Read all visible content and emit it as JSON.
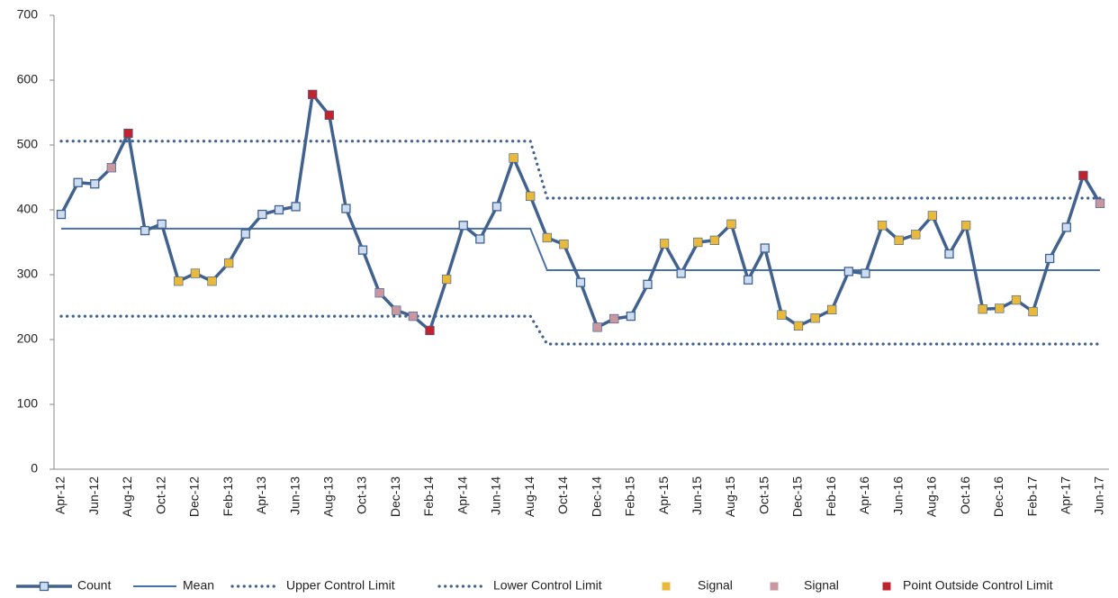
{
  "chart_data": {
    "type": "line",
    "categories": [
      "Apr-12",
      null,
      "Jun-12",
      null,
      "Aug-12",
      null,
      "Oct-12",
      null,
      "Dec-12",
      null,
      "Feb-13",
      null,
      "Apr-13",
      null,
      "Jun-13",
      null,
      "Aug-13",
      null,
      "Oct-13",
      null,
      "Dec-13",
      null,
      "Feb-14",
      null,
      "Apr-14",
      null,
      "Jun-14",
      null,
      "Aug-14",
      null,
      "Oct-14",
      null,
      "Dec-14",
      null,
      "Feb-15",
      null,
      "Apr-15",
      null,
      "Jun-15",
      null,
      "Aug-15",
      null,
      "Oct-15",
      null,
      "Dec-15",
      null,
      "Feb-16",
      null,
      "Apr-16",
      null,
      "Jun-16",
      null,
      "Aug-16",
      null,
      "Oct-16",
      null,
      "Dec-16",
      null,
      "Feb-17",
      null,
      "Apr-17",
      null,
      "Jun-17"
    ],
    "ylim": [
      0,
      700
    ],
    "yticks": [
      0,
      100,
      200,
      300,
      400,
      500,
      600,
      700
    ],
    "series": [
      {
        "name": "Count",
        "color": "#41628f",
        "style": "line-markers",
        "values": [
          393,
          442,
          440,
          465,
          518,
          368,
          378,
          290,
          302,
          290,
          318,
          363,
          393,
          400,
          405,
          578,
          546,
          402,
          338,
          272,
          245,
          236,
          214,
          293,
          376,
          355,
          405,
          480,
          421,
          357,
          347,
          288,
          219,
          232,
          236,
          285,
          348,
          302,
          350,
          353,
          378,
          292,
          341,
          238,
          221,
          233,
          246,
          305,
          302,
          376,
          353,
          362,
          391,
          332,
          376,
          247,
          248,
          261,
          243,
          325,
          373,
          453,
          410
        ]
      },
      {
        "name": "Mean",
        "color": "#4a70a8",
        "style": "line",
        "values": [
          371,
          371,
          371,
          371,
          371,
          371,
          371,
          371,
          371,
          371,
          371,
          371,
          371,
          371,
          371,
          371,
          371,
          371,
          371,
          371,
          371,
          371,
          371,
          371,
          371,
          371,
          371,
          371,
          371,
          307,
          307,
          307,
          307,
          307,
          307,
          307,
          307,
          307,
          307,
          307,
          307,
          307,
          307,
          307,
          307,
          307,
          307,
          307,
          307,
          307,
          307,
          307,
          307,
          307,
          307,
          307,
          307,
          307,
          307,
          307,
          307,
          307,
          307
        ]
      },
      {
        "name": "Upper Control Limit",
        "color": "#41628f",
        "style": "dotted",
        "values": [
          506,
          506,
          506,
          506,
          506,
          506,
          506,
          506,
          506,
          506,
          506,
          506,
          506,
          506,
          506,
          506,
          506,
          506,
          506,
          506,
          506,
          506,
          506,
          506,
          506,
          506,
          506,
          506,
          506,
          418,
          418,
          418,
          418,
          418,
          418,
          418,
          418,
          418,
          418,
          418,
          418,
          418,
          418,
          418,
          418,
          418,
          418,
          418,
          418,
          418,
          418,
          418,
          418,
          418,
          418,
          418,
          418,
          418,
          418,
          418,
          418,
          418,
          418
        ]
      },
      {
        "name": "Lower Control Limit",
        "color": "#41628f",
        "style": "dotted",
        "values": [
          236,
          236,
          236,
          236,
          236,
          236,
          236,
          236,
          236,
          236,
          236,
          236,
          236,
          236,
          236,
          236,
          236,
          236,
          236,
          236,
          236,
          236,
          236,
          236,
          236,
          236,
          236,
          236,
          236,
          193,
          193,
          193,
          193,
          193,
          193,
          193,
          193,
          193,
          193,
          193,
          193,
          193,
          193,
          193,
          193,
          193,
          193,
          193,
          193,
          193,
          193,
          193,
          193,
          193,
          193,
          193,
          193,
          193,
          193,
          193,
          193,
          193,
          193
        ]
      },
      {
        "name": "Signal",
        "color": "#e8b93a",
        "style": "markers",
        "values": [
          null,
          null,
          null,
          null,
          null,
          null,
          null,
          290,
          302,
          290,
          318,
          null,
          null,
          null,
          null,
          null,
          null,
          null,
          null,
          null,
          null,
          null,
          null,
          293,
          null,
          null,
          null,
          480,
          421,
          357,
          347,
          null,
          null,
          null,
          null,
          null,
          348,
          null,
          350,
          353,
          378,
          null,
          null,
          238,
          221,
          233,
          246,
          null,
          null,
          376,
          353,
          362,
          391,
          null,
          376,
          247,
          248,
          261,
          243,
          null,
          null,
          null,
          null
        ]
      },
      {
        "name": "Signal",
        "color": "#c9979f",
        "style": "markers",
        "values": [
          null,
          null,
          null,
          465,
          null,
          null,
          null,
          null,
          null,
          null,
          null,
          null,
          null,
          null,
          null,
          null,
          null,
          null,
          null,
          272,
          245,
          236,
          null,
          null,
          null,
          null,
          null,
          null,
          null,
          null,
          null,
          null,
          219,
          232,
          null,
          null,
          null,
          null,
          null,
          null,
          null,
          null,
          null,
          null,
          null,
          null,
          null,
          null,
          null,
          null,
          null,
          null,
          null,
          null,
          null,
          null,
          null,
          null,
          null,
          null,
          null,
          null,
          410
        ]
      },
      {
        "name": "Point Outside Control Limit",
        "color": "#c0232e",
        "style": "markers",
        "values": [
          null,
          null,
          null,
          null,
          518,
          null,
          null,
          null,
          null,
          null,
          null,
          null,
          null,
          null,
          null,
          578,
          546,
          null,
          null,
          null,
          null,
          null,
          214,
          null,
          null,
          null,
          null,
          null,
          null,
          null,
          null,
          null,
          null,
          null,
          null,
          null,
          null,
          null,
          null,
          null,
          null,
          null,
          null,
          null,
          null,
          null,
          null,
          null,
          null,
          null,
          null,
          null,
          null,
          null,
          null,
          null,
          null,
          null,
          null,
          null,
          null,
          453,
          null
        ]
      }
    ]
  }
}
